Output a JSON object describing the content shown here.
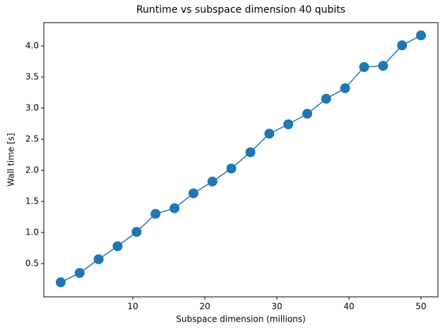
{
  "chart_data": {
    "type": "line",
    "title": "Runtime vs subspace dimension 40 qubits",
    "x_label": "Subspace dimension (millions)",
    "y_label": "Wall time [s]",
    "x": [
      0,
      2.63,
      5.26,
      7.89,
      10.53,
      13.16,
      15.79,
      18.42,
      21.05,
      23.68,
      26.32,
      28.95,
      31.58,
      34.21,
      36.84,
      39.47,
      42.11,
      44.74,
      47.37,
      50
    ],
    "series": [
      {
        "color": "#1f77b4",
        "values": [
          0.2,
          0.35,
          0.57,
          0.78,
          1.01,
          1.3,
          1.39,
          1.63,
          1.82,
          2.03,
          2.29,
          2.59,
          2.74,
          2.91,
          3.15,
          3.32,
          3.66,
          3.68,
          4.01,
          4.17
        ]
      }
    ],
    "xlim": [
      -2.35,
      52.35
    ],
    "ylim": [
      -0.034,
      4.375
    ],
    "xticks": [
      10,
      20,
      30,
      40,
      50
    ],
    "yticks": [
      {
        "value": 0.5,
        "label": "0.5"
      },
      {
        "value": 1,
        "label": "1.0"
      },
      {
        "value": 1.5,
        "label": "1.5"
      },
      {
        "value": 2,
        "label": "2.0"
      },
      {
        "value": 2.5,
        "label": "2.5"
      },
      {
        "value": 3,
        "label": "3.0"
      },
      {
        "value": 3.5,
        "label": "3.5"
      },
      {
        "value": 4,
        "label": "4.0"
      }
    ],
    "grid": false
  }
}
